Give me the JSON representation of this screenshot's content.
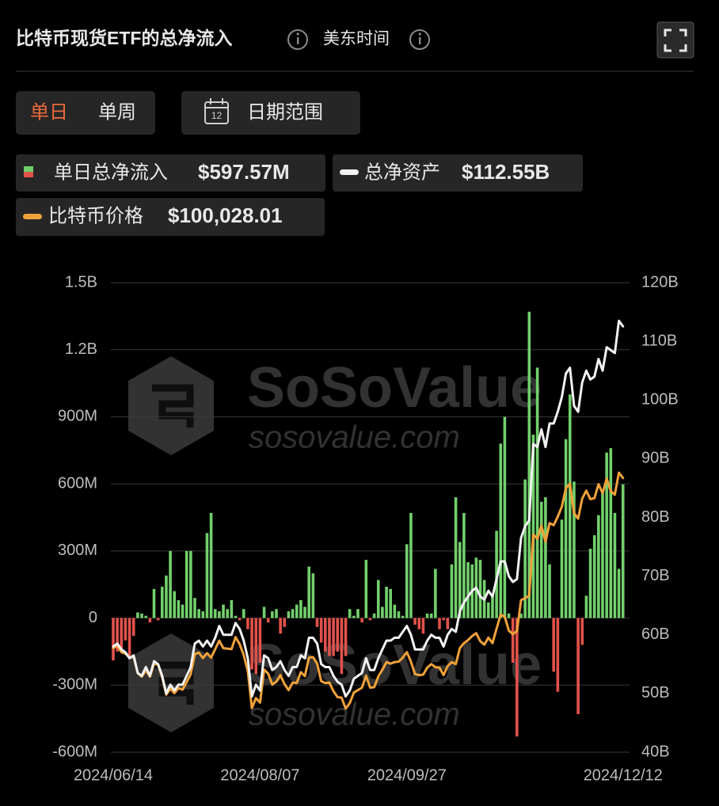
{
  "header": {
    "title": "比特币现货ETF的总净流入",
    "timezone": "美东时间"
  },
  "tabs": [
    "单日",
    "单周"
  ],
  "date_range": "日期范围",
  "legend_values": [
    "$597.57M",
    "$112.55B",
    "$100,028.01"
  ],
  "watermark": {
    "brand": "SoSoValue",
    "site": "sosovalue.com"
  },
  "chart_data": {
    "type": "bar",
    "categories": [
      "2024/06/14",
      null,
      null,
      null,
      null,
      null,
      null,
      null,
      null,
      null,
      null,
      null,
      null,
      null,
      null,
      null,
      null,
      null,
      null,
      null,
      null,
      null,
      null,
      null,
      null,
      null,
      null,
      null,
      null,
      null,
      null,
      null,
      null,
      null,
      null,
      null,
      "2024/08/07",
      null,
      null,
      null,
      null,
      null,
      null,
      null,
      null,
      null,
      null,
      null,
      null,
      null,
      null,
      null,
      null,
      null,
      null,
      null,
      null,
      null,
      null,
      null,
      null,
      null,
      null,
      null,
      null,
      null,
      null,
      null,
      null,
      null,
      null,
      null,
      "2024/09/27",
      null,
      null,
      null,
      null,
      null,
      null,
      null,
      null,
      null,
      null,
      null,
      null,
      null,
      null,
      null,
      null,
      null,
      null,
      null,
      null,
      null,
      null,
      null,
      null,
      null,
      null,
      null,
      null,
      null,
      null,
      null,
      null,
      null,
      null,
      null,
      null,
      null,
      null,
      null,
      null,
      null,
      null,
      null,
      null,
      null,
      null,
      null,
      null,
      null,
      null,
      null,
      null,
      "2024/12/12"
    ],
    "ylim": [
      -600,
      1500
    ],
    "yticks": [
      {
        "value": -600,
        "label": "-600M"
      },
      {
        "value": -300,
        "label": "-300M"
      },
      0,
      {
        "value": 300,
        "label": "300M"
      },
      {
        "value": 600,
        "label": "600M"
      },
      {
        "value": 900,
        "label": "900M"
      },
      {
        "value": 1200,
        "label": "1.2B"
      },
      {
        "value": 1500,
        "label": "1.5B"
      }
    ],
    "y2lim": [
      40,
      120
    ],
    "y2ticks": [
      {
        "value": 40,
        "label": "40B"
      },
      {
        "value": 50,
        "label": "50B"
      },
      {
        "value": 60,
        "label": "60B"
      },
      {
        "value": 70,
        "label": "70B"
      },
      {
        "value": 80,
        "label": "80B"
      },
      {
        "value": 90,
        "label": "90B"
      },
      {
        "value": 100,
        "label": "100B"
      },
      {
        "value": 110,
        "label": "110B"
      },
      {
        "value": 120,
        "label": "120B"
      }
    ],
    "grid": true,
    "series": [
      {
        "name": "单日总净流入",
        "type": "bar",
        "color": "#72d06c",
        "negative_color": "#e2524b",
        "values": [
          -190,
          -150,
          -140,
          -100,
          -170,
          -80,
          25,
          20,
          10,
          -20,
          130,
          -10,
          140,
          190,
          300,
          120,
          80,
          60,
          300,
          300,
          90,
          40,
          30,
          380,
          470,
          40,
          30,
          60,
          40,
          80,
          10,
          -10,
          40,
          -50,
          -230,
          -250,
          -200,
          50,
          -20,
          30,
          40,
          -70,
          -40,
          30,
          40,
          60,
          80,
          50,
          230,
          200,
          -40,
          -110,
          -150,
          -170,
          -170,
          -150,
          -250,
          -170,
          40,
          10,
          40,
          -20,
          260,
          -10,
          20,
          170,
          50,
          140,
          130,
          60,
          30,
          10,
          330,
          470,
          -30,
          -50,
          -70,
          20,
          20,
          220,
          -50,
          -10,
          -50,
          240,
          540,
          340,
          470,
          250,
          240,
          270,
          260,
          170,
          70,
          110,
          390,
          780,
          900,
          20,
          -200,
          -530,
          20,
          620,
          1370,
          820,
          1120,
          520,
          540,
          240,
          -240,
          -330,
          440,
          800,
          1000,
          610,
          -430,
          -120,
          100,
          310,
          370,
          460,
          560,
          740,
          760,
          470,
          220,
          597.57
        ]
      },
      {
        "name": "总净资产",
        "type": "line",
        "axis": "y2",
        "color": "#f2f2f2",
        "values": [
          58.0,
          58.5,
          57.5,
          57.0,
          56.0,
          56.5,
          53.5,
          53.0,
          54.5,
          53.0,
          55.5,
          55.0,
          53.0,
          50.0,
          51.5,
          50.5,
          51.5,
          51.5,
          53.0,
          54.5,
          58.5,
          59.0,
          58.0,
          59.0,
          58.0,
          59.5,
          61.5,
          60.0,
          60.0,
          60.0,
          62.0,
          61.0,
          59.0,
          56.0,
          49.5,
          51.5,
          50.5,
          56.5,
          56.0,
          54.0,
          54.5,
          55.5,
          54.0,
          53.0,
          54.5,
          54.5,
          56.5,
          56.0,
          59.5,
          59.5,
          58.5,
          55.0,
          54.5,
          54.5,
          53.0,
          52.0,
          51.5,
          49.5,
          50.5,
          52.5,
          53.0,
          53.5,
          56.0,
          54.0,
          54.0,
          56.0,
          57.5,
          59.0,
          59.0,
          59.5,
          59.5,
          60.5,
          61.5,
          60.0,
          57.5,
          57.5,
          57.5,
          59.0,
          60.0,
          59.5,
          59.5,
          58.0,
          60.0,
          61.0,
          60.5,
          64.0,
          65.5,
          66.5,
          67.5,
          68.0,
          66.5,
          66.0,
          67.5,
          66.5,
          69.5,
          72.5,
          72.5,
          70.0,
          69.0,
          69.5,
          76.5,
          78.5,
          79.5,
          92.5,
          92.0,
          95.0,
          92.0,
          96.0,
          96.0,
          98.0,
          100.5,
          104.5,
          105.5,
          99.0,
          98.0,
          103.0,
          105.0,
          103.5,
          104.0,
          107.0,
          105.0,
          109.0,
          108.5,
          108.0,
          113.5,
          112.55
        ]
      },
      {
        "name": "比特币价格",
        "type": "line",
        "color": "#f0a23a",
        "values": [
          66000,
          66500,
          65200,
          64900,
          64100,
          64300,
          61000,
          60300,
          61600,
          60300,
          62900,
          62700,
          60200,
          56700,
          57900,
          57000,
          58000,
          57700,
          59200,
          60800,
          64800,
          65100,
          64000,
          65000,
          64100,
          65800,
          67500,
          66000,
          65900,
          65800,
          68200,
          66800,
          64600,
          61400,
          54000,
          56000,
          55100,
          61700,
          60900,
          58700,
          59300,
          60600,
          58800,
          57600,
          59100,
          59000,
          61200,
          60400,
          64100,
          64200,
          62900,
          59400,
          59000,
          59100,
          57400,
          56200,
          56100,
          53900,
          55000,
          57100,
          57600,
          58100,
          60500,
          58100,
          58200,
          60300,
          61700,
          63200,
          62900,
          63200,
          63300,
          64100,
          65200,
          63300,
          60800,
          60600,
          60700,
          62100,
          62800,
          62200,
          62100,
          60600,
          62400,
          63200,
          62800,
          66000,
          67000,
          67600,
          68400,
          69000,
          67400,
          66700,
          68100,
          67000,
          69900,
          72700,
          72300,
          69500,
          68800,
          69400,
          75600,
          76000,
          76500,
          88700,
          87900,
          90500,
          87300,
          91000,
          90600,
          92300,
          94300,
          98000,
          98900,
          93000,
          91900,
          95900,
          97500,
          95800,
          96000,
          98800,
          97000,
          99900,
          97400,
          96700,
          101100,
          100028.01
        ]
      }
    ]
  }
}
